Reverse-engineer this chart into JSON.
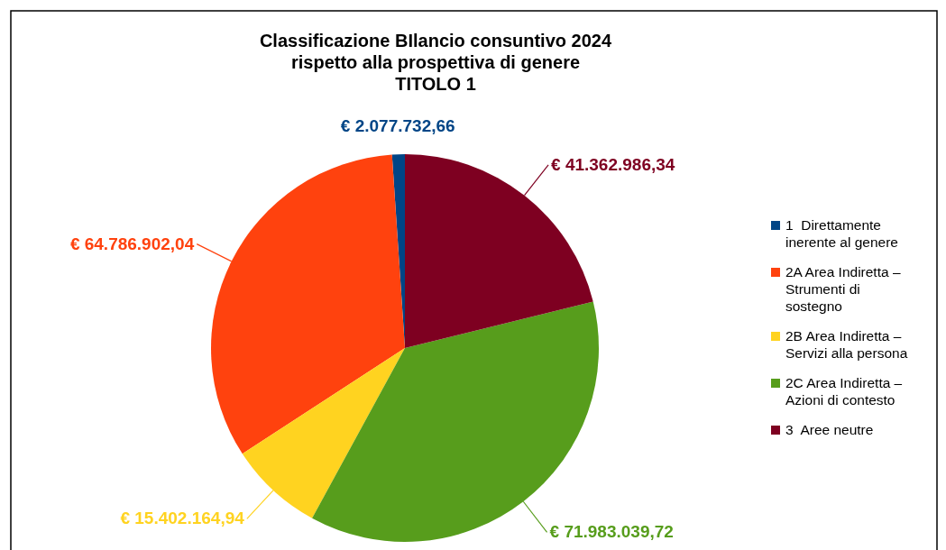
{
  "chart_data": {
    "type": "pie",
    "title": "Classificazione BIlancio consuntivo 2024\nrispetto alla prospettiva di genere\nTITOLO 1",
    "categories": [
      "1  Direttamente inerente al genere",
      "2A Area Indiretta – Strumenti di sostegno",
      "2B Area Indiretta – Servizi alla persona",
      "2C Area Indiretta – Azioni di contesto",
      "3  Aree neutre"
    ],
    "values": [
      2077732.66,
      64786902.04,
      15402164.94,
      71983039.72,
      41362986.34
    ],
    "colors": [
      "#004586",
      "#ff420e",
      "#ffd320",
      "#579d1c",
      "#7e0021"
    ],
    "value_labels": [
      "€ 2.077.732,66",
      "€ 64.786.902,04",
      "€ 15.402.164,94",
      "€ 71.983.039,72",
      "€ 41.362.986,34"
    ],
    "legend": "right"
  }
}
